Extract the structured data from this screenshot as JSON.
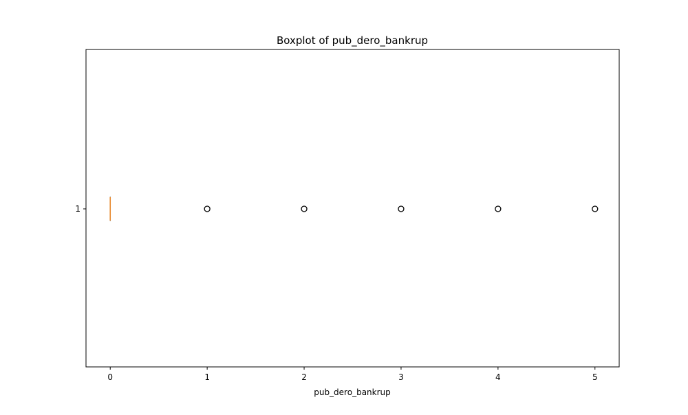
{
  "chart_data": {
    "type": "boxplot",
    "orientation": "horizontal",
    "title": "Boxplot of pub_dero_bankrup",
    "xlabel": "pub_dero_bankrup",
    "ylabel": "",
    "xlim": [
      -0.25,
      5.25
    ],
    "x_ticks": [
      0,
      1,
      2,
      3,
      4,
      5
    ],
    "x_tick_labels": [
      "0",
      "1",
      "2",
      "3",
      "4",
      "5"
    ],
    "y_tick_labels": [
      "1"
    ],
    "grid": false,
    "box": {
      "position": 1,
      "min": 0,
      "q1": 0,
      "median": 0,
      "q3": 0,
      "max": 0
    },
    "outliers": [
      1,
      2,
      3,
      4,
      5
    ],
    "colors": {
      "median": "#e8892e",
      "box": "#000000",
      "outlier": "#000000"
    }
  }
}
